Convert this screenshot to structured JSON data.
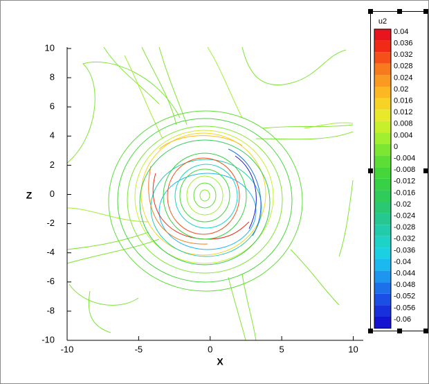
{
  "chart_data": {
    "type": "contour",
    "xlabel": "X",
    "ylabel": "Z",
    "xlim": [
      -10,
      10.7
    ],
    "ylim": [
      -10,
      10
    ],
    "xticks": [
      -10,
      -5,
      0,
      5,
      10
    ],
    "yticks": [
      -10,
      -8,
      -6,
      -4,
      -2,
      0,
      2,
      4,
      6,
      8,
      10
    ],
    "legend": {
      "title": "u2",
      "levels": [
        0.04,
        0.036,
        0.032,
        0.028,
        0.024,
        0.02,
        0.016,
        0.012,
        0.008,
        0.004,
        0,
        -0.004,
        -0.008,
        -0.012,
        -0.016,
        -0.02,
        -0.024,
        -0.028,
        -0.032,
        -0.036,
        -0.04,
        -0.044,
        -0.048,
        -0.052,
        -0.056,
        -0.06
      ],
      "colors": [
        "#e8141e",
        "#f02a14",
        "#f5501a",
        "#f87a1e",
        "#fa9a20",
        "#fbb822",
        "#f6d324",
        "#e9e82a",
        "#c8ef2c",
        "#a2ee30",
        "#7de632",
        "#5cde36",
        "#44d63a",
        "#38d046",
        "#30cc5a",
        "#2ac872",
        "#26c890",
        "#22ccaa",
        "#1ed2c8",
        "#1cd0e4",
        "#1cb8f0",
        "#1e96f0",
        "#1c70ea",
        "#1a4ee4",
        "#1830dc",
        "#1414d0"
      ]
    }
  }
}
